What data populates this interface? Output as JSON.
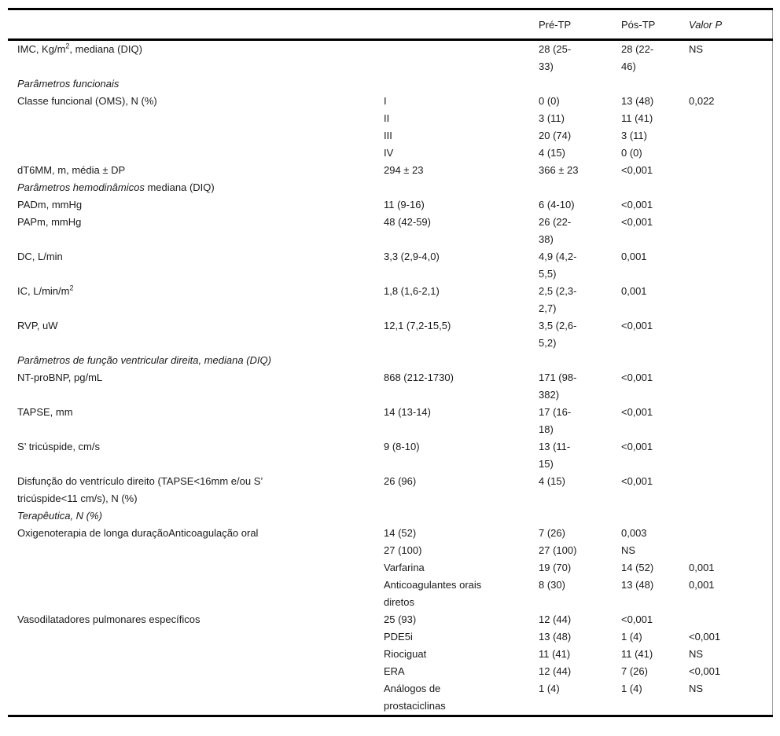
{
  "colors": {
    "text": "#1a1a1a",
    "rule": "#000000",
    "side_rule": "#a0a0a0",
    "background": "#ffffff"
  },
  "table": {
    "header": {
      "pre_tp": "Pré-TP",
      "pos_tp": "Pós-TP",
      "valor_p": "Valor P"
    },
    "rows": [
      {
        "c1_pre": "IMC, Kg/m",
        "c1_sup": "2",
        "c1_post": ", mediana (DIQ)",
        "c3": "28 (25-33)",
        "c4": "28 (22-46)",
        "c5": "NS"
      },
      {
        "c1": "Parâmetros funcionais"
      },
      {
        "c1": "Classe funcional (OMS), N (%)",
        "c2": "I",
        "c3": "0 (0)",
        "c4": "13 (48)",
        "c5": "0,022"
      },
      {
        "c2": "II",
        "c3": "3 (11)",
        "c4": "11 (41)"
      },
      {
        "c2": "III",
        "c3": "20 (74)",
        "c4": "3 (11)"
      },
      {
        "c2": "IV",
        "c3": "4 (15)",
        "c4": "0 (0)"
      },
      {
        "c1": "dT6MM, m, média ± DP",
        "c2": "294 ± 23",
        "c3": "366 ± 23",
        "c4": "<0,001"
      },
      {
        "c1_italic": "Parâmetros hemodinâmicos",
        "c1_normal": " mediana (DIQ)"
      },
      {
        "c1": "PADm, mmHg",
        "c2": "11 (9-16)",
        "c3": "6 (4-10)",
        "c4": "<0,001"
      },
      {
        "c1": "PAPm, mmHg",
        "c2": "48 (42-59)",
        "c3": "26 (22-38)",
        "c4": "<0,001"
      },
      {
        "c1": "DC, L/min",
        "c2": "3,3 (2,9-4,0)",
        "c3": "4,9 (4,2-5,5)",
        "c4": "0,001"
      },
      {
        "c1_pre": "IC, L/min/m",
        "c1_sup": "2",
        "c1_post": "",
        "c2": "1,8 (1,6-2,1)",
        "c3": "2,5 (2,3-2,7)",
        "c4": "0,001"
      },
      {
        "c1": "RVP, uW",
        "c2": "12,1 (7,2-15,5)",
        "c3": "3,5 (2,6-5,2)",
        "c4": "<0,001"
      },
      {
        "c1": "Parâmetros de função ventricular direita, mediana (DIQ)"
      },
      {
        "c1": "NT-proBNP, pg/mL",
        "c2": "868 (212-1730)",
        "c3": "171 (98-382)",
        "c4": "<0,001"
      },
      {
        "c1": "TAPSE, mm",
        "c2": "14 (13-14)",
        "c3": "17 (16-18)",
        "c4": "<0,001"
      },
      {
        "c1": "S’ tricúspide, cm/s",
        "c2": "9 (8-10)",
        "c3": "13 (11-15)",
        "c4": "<0,001"
      },
      {
        "c1": "Disfunção do ventrículo direito (TAPSE<16mm e/ou S’ tricúspide<11 cm/s), N (%)",
        "c2": "26 (96)",
        "c3": "4 (15)",
        "c4": "<0,001"
      },
      {
        "c1": "Terapêutica, N (%)"
      },
      {
        "c1": "Oxigenoterapia de longa duraçãoAnticoagulação oral",
        "c2": "14 (52)",
        "c3": "7 (26)",
        "c4": "0,003"
      },
      {
        "c2": "27 (100)",
        "c3": "27 (100)",
        "c4": "NS"
      },
      {
        "c2": "Varfarina",
        "c3": "19 (70)",
        "c4": "14 (52)",
        "c5": "0,001"
      },
      {
        "c2": "Anticoagulantes orais diretos",
        "c3": "8 (30)",
        "c4": "13 (48)",
        "c5": "0,001"
      },
      {
        "c1": "Vasodilatadores pulmonares específicos",
        "c2": "25 (93)",
        "c3": "12 (44)",
        "c4": "<0,001"
      },
      {
        "c2": "PDE5i",
        "c3": "13 (48)",
        "c4": "1 (4)",
        "c5": "<0,001"
      },
      {
        "c2": "Riociguat",
        "c3": "11 (41)",
        "c4": "11 (41)",
        "c5": "NS"
      },
      {
        "c2": "ERA",
        "c3": "12 (44)",
        "c4": "7 (26)",
        "c5": "<0,001"
      },
      {
        "c2": "Análogos de prostaciclinas",
        "c3": "1 (4)",
        "c4": "1 (4)",
        "c5": "NS"
      }
    ]
  }
}
